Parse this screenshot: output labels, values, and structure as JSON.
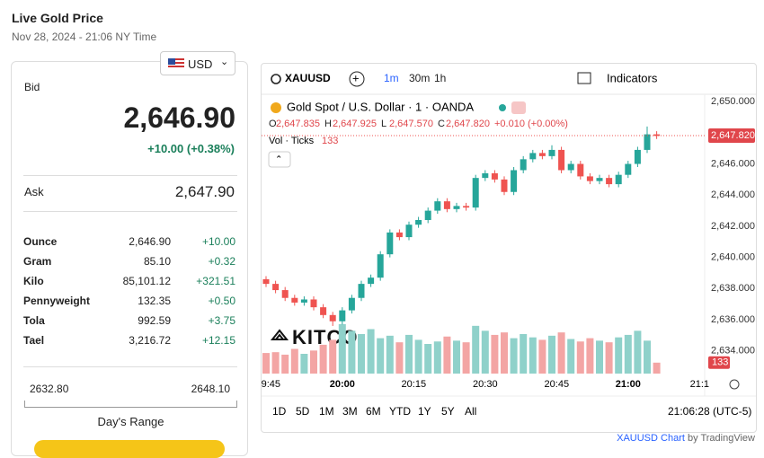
{
  "header": {
    "title": "Live Gold Price",
    "date": "Nov 28, 2024 - 21:06 NY Time",
    "currency": "USD"
  },
  "quote": {
    "bid_label": "Bid",
    "bid": "2,646.90",
    "change": "+10.00 (+0.38%)",
    "ask_label": "Ask",
    "ask": "2,647.90"
  },
  "table": {
    "rows": [
      [
        "Ounce",
        "2,646.90",
        "+10.00"
      ],
      [
        "Gram",
        "85.10",
        "+0.32"
      ],
      [
        "Kilo",
        "85,101.12",
        "+321.51"
      ],
      [
        "Pennyweight",
        "132.35",
        "+0.50"
      ],
      [
        "Tola",
        "992.59",
        "+3.75"
      ],
      [
        "Tael",
        "3,216.72",
        "+12.15"
      ]
    ]
  },
  "range": {
    "low": "2632.80",
    "high": "2648.10",
    "label": "Day's Range"
  },
  "toolbar": {
    "symbol": "XAUUSD",
    "intervals": [
      "1m",
      "30m",
      "1h"
    ],
    "indicators": "Indicators"
  },
  "bottom": {
    "ranges": [
      "1D",
      "5D",
      "1M",
      "3M",
      "6M",
      "YTD",
      "1Y",
      "5Y",
      "All"
    ],
    "clock": "21:06:28 (UTC-5)"
  },
  "attribution": {
    "symbol": "XAUUSD Chart",
    "by": "by TradingView"
  },
  "watermark": "KITCO",
  "chart_data": {
    "type": "candlestick",
    "title": "Gold Spot / U.S. Dollar · 1 · OANDA",
    "ohlc": [
      {
        "key": "O",
        "value": "2,647.835"
      },
      {
        "key": "H",
        "value": "2,647.925"
      },
      {
        "key": "L",
        "value": "2,647.570"
      },
      {
        "key": "C",
        "value": "2,647.820"
      }
    ],
    "ohlc_change": "+0.010 (+0.00%)",
    "volume_label": "Vol · Ticks",
    "open": [
      2638.6,
      2638.3,
      2637.9,
      2637.4,
      2637.1,
      2637.3,
      2636.8,
      2636.3,
      2635.9,
      2636.6,
      2637.4,
      2638.3,
      2638.7,
      2640.2,
      2641.6,
      2641.3,
      2642.1,
      2642.4,
      2643.0,
      2643.6,
      2643.1,
      2643.3,
      2643.2,
      2645.1,
      2645.4,
      2645.0,
      2644.2,
      2645.6,
      2646.3,
      2646.7,
      2646.5,
      2646.9,
      2645.6,
      2646.0,
      2645.2,
      2644.9,
      2645.1,
      2644.7,
      2645.3,
      2646.0,
      2646.9,
      2647.9
    ],
    "high": [
      2638.8,
      2638.5,
      2638.1,
      2637.6,
      2637.5,
      2637.5,
      2637.0,
      2636.5,
      2636.8,
      2637.6,
      2638.5,
      2638.9,
      2640.4,
      2641.8,
      2641.8,
      2642.3,
      2642.6,
      2643.2,
      2643.8,
      2643.8,
      2643.5,
      2643.5,
      2645.3,
      2645.6,
      2645.6,
      2645.2,
      2645.8,
      2646.5,
      2646.9,
      2646.9,
      2647.2,
      2647.1,
      2646.2,
      2646.2,
      2645.4,
      2645.3,
      2645.3,
      2645.5,
      2646.2,
      2647.1,
      2648.4,
      2648.1
    ],
    "low": [
      2638.1,
      2637.7,
      2637.2,
      2636.9,
      2636.9,
      2636.6,
      2636.1,
      2635.6,
      2635.7,
      2636.4,
      2637.2,
      2638.1,
      2638.5,
      2640.0,
      2641.1,
      2641.1,
      2641.9,
      2642.2,
      2642.8,
      2642.9,
      2642.9,
      2643.0,
      2643.0,
      2644.9,
      2644.8,
      2644.0,
      2644.0,
      2645.4,
      2646.1,
      2646.3,
      2646.3,
      2645.4,
      2645.4,
      2645.0,
      2644.7,
      2644.7,
      2644.5,
      2644.5,
      2645.1,
      2645.8,
      2646.7,
      2647.6
    ],
    "close": [
      2638.3,
      2637.9,
      2637.4,
      2637.1,
      2637.3,
      2636.8,
      2636.3,
      2635.9,
      2636.6,
      2637.4,
      2638.3,
      2638.7,
      2640.2,
      2641.6,
      2641.3,
      2642.1,
      2642.4,
      2643.0,
      2643.6,
      2643.1,
      2643.3,
      2643.2,
      2645.1,
      2645.4,
      2645.0,
      2644.2,
      2645.6,
      2646.3,
      2646.7,
      2646.5,
      2646.9,
      2645.6,
      2646.0,
      2645.2,
      2644.9,
      2645.1,
      2644.7,
      2645.3,
      2646.0,
      2646.9,
      2647.9,
      2647.8
    ],
    "volume": [
      250,
      260,
      230,
      300,
      240,
      280,
      350,
      410,
      600,
      520,
      480,
      540,
      430,
      460,
      380,
      470,
      410,
      360,
      390,
      450,
      400,
      380,
      580,
      520,
      470,
      500,
      430,
      480,
      440,
      410,
      460,
      500,
      420,
      390,
      430,
      400,
      380,
      440,
      470,
      520,
      400,
      133
    ],
    "xticks": [
      "9:45",
      "20:00",
      "20:15",
      "20:30",
      "20:45",
      "21:00",
      "21:1"
    ],
    "ylim": [
      2632.6,
      2650.7
    ],
    "yticks": [
      {
        "value": 2650,
        "label": "2,650.000"
      },
      {
        "value": 2648,
        "label": "2,648.000"
      },
      {
        "value": 2646,
        "label": "2,646.000"
      },
      {
        "value": 2644,
        "label": "2,644.000"
      },
      {
        "value": 2642,
        "label": "2,642.000"
      },
      {
        "value": 2640,
        "label": "2,640.000"
      },
      {
        "value": 2638,
        "label": "2,638.000"
      },
      {
        "value": 2636,
        "label": "2,636.000"
      },
      {
        "value": 2634,
        "label": "2,634.000"
      }
    ],
    "last_price": {
      "value": 2647.82,
      "label": "2,647.820"
    },
    "up_color": "#26a69a",
    "down_color": "#ef5350",
    "up_volume_color": "#8fd1ca",
    "down_volume_color": "#f3a5a4",
    "grid": false
  }
}
